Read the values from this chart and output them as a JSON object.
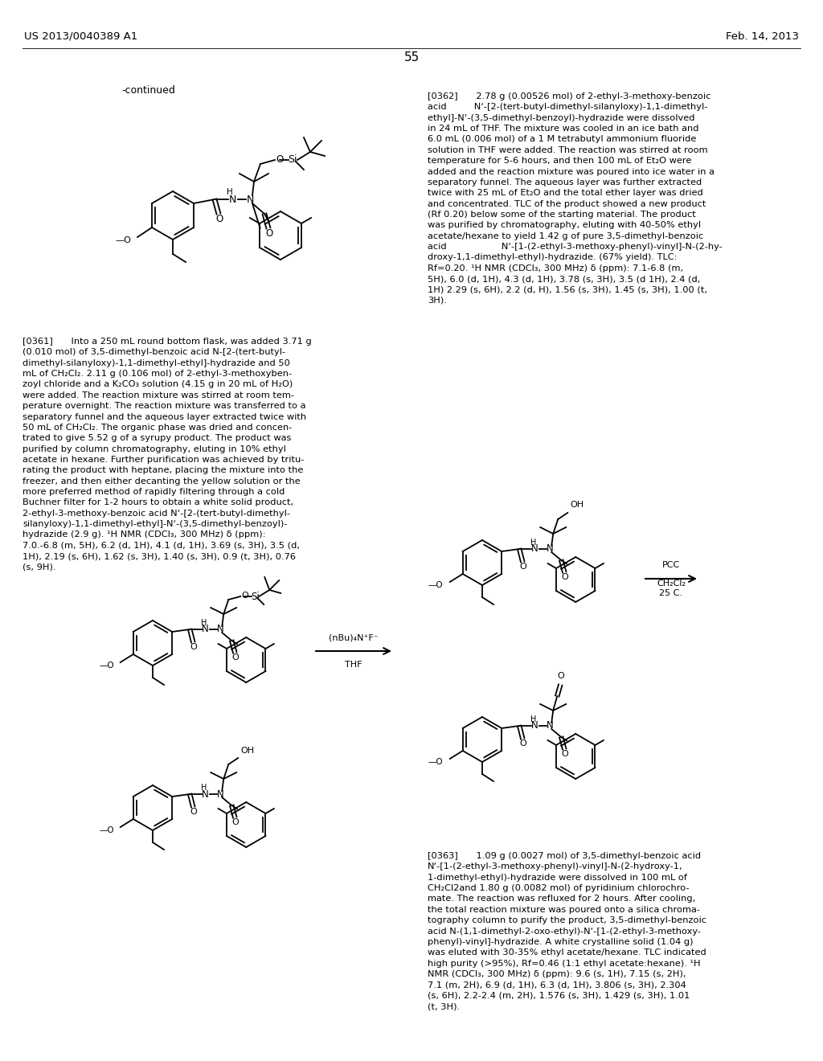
{
  "page_number": "55",
  "header_left": "US 2013/0040389 A1",
  "header_right": "Feb. 14, 2013",
  "background_color": "#ffffff",
  "text_color": "#000000",
  "continued_label": "-continued",
  "p0361": "[0361]  Into a 250 mL round bottom flask, was added 3.71 g\n(0.010 mol) of 3,5-dimethyl-benzoic acid N-[2-(tert-butyl-\ndimethyl-silanyloxy)-1,1-dimethyl-ethyl]-hydrazide and 50\nmL of CH₂Cl₂. 2.11 g (0.106 mol) of 2-ethyl-3-methoxyben-\nzoyl chloride and a K₂CO₃ solution (4.15 g in 20 mL of H₂O)\nwere added. The reaction mixture was stirred at room tem-\nperature overnight. The reaction mixture was transferred to a\nseparatory funnel and the aqueous layer extracted twice with\n50 mL of CH₂Cl₂. The organic phase was dried and concen-\ntrated to give 5.52 g of a syrupy product. The product was\npurified by column chromatography, eluting in 10% ethyl\nacetate in hexane. Further purification was achieved by tritu-\nrating the product with heptane, placing the mixture into the\nfreezer, and then either decanting the yellow solution or the\nmore preferred method of rapidly filtering through a cold\nBuchner filter for 1-2 hours to obtain a white solid product,\n2-ethyl-3-methoxy-benzoic acid N‘-[2-(tert-butyl-dimethyl-\nsilanyloxy)-1,1-dimethyl-ethyl]-N‘-(3,5-dimethyl-benzoyl)-\nhydrazide (2.9 g). ¹H NMR (CDCl₃, 300 MHz) δ (ppm):\n7.0.-6.8 (m, 5H), 6.2 (d, 1H), 4.1 (d, 1H), 3.69 (s, 3H), 3.5 (d,\n1H), 2.19 (s, 6H), 1.62 (s, 3H), 1.40 (s, 3H), 0.9 (t, 3H), 0.76\n(s, 9H).",
  "p0362": "[0362]  2.78 g (0.00526 mol) of 2-ethyl-3-methoxy-benzoic\nacid   N‘-[2-(tert-butyl-dimethyl-silanyloxy)-1,1-dimethyl-\nethyl]-N‘-(3,5-dimethyl-benzoyl)-hydrazide were dissolved\nin 24 mL of THF. The mixture was cooled in an ice bath and\n6.0 mL (0.006 mol) of a 1 M tetrabutyl ammonium fluoride\nsolution in THF were added. The reaction was stirred at room\ntemperature for 5-6 hours, and then 100 mL of Et₂O were\nadded and the reaction mixture was poured into ice water in a\nseparatory funnel. The aqueous layer was further extracted\ntwice with 25 mL of Et₂O and the total ether layer was dried\nand concentrated. TLC of the product showed a new product\n(Rf 0.20) below some of the starting material. The product\nwas purified by chromatography, eluting with 40-50% ethyl\nacetate/hexane to yield 1.42 g of pure 3,5-dimethyl-benzoic\nacid      N‘-[1-(2-ethyl-3-methoxy-phenyl)-vinyl]-N-(2-hy-\ndroxy-1,1-dimethyl-ethyl)-hydrazide. (67% yield). TLC:\nRf=0.20. ¹H NMR (CDCl₃, 300 MHz) δ (ppm): 7.1-6.8 (m,\n5H), 6.0 (d, 1H), 4.3 (d, 1H), 3.78 (s, 3H), 3.5 (d 1H), 2.4 (d,\n1H) 2.29 (s, 6H), 2.2 (d, H), 1.56 (s, 3H), 1.45 (s, 3H), 1.00 (t,\n3H).",
  "p0363": "[0363]  1.09 g (0.0027 mol) of 3,5-dimethyl-benzoic acid\nN‘-[1-(2-ethyl-3-methoxy-phenyl)-vinyl]-N-(2-hydroxy-1,\n1-dimethyl-ethyl)-hydrazide were dissolved in 100 mL of\nCH₂Cl2and 1.80 g (0.0082 mol) of pyridinium chlorochro-\nmate. The reaction was refluxed for 2 hours. After cooling,\nthe total reaction mixture was poured onto a silica chroma-\ntography column to purify the product, 3,5-dimethyl-benzoic\nacid N-(1,1-dimethyl-2-oxo-ethyl)-N‘-[1-(2-ethyl-3-methoxy-\nphenyl)-vinyl]-hydrazide. A white crystalline solid (1.04 g)\nwas eluted with 30-35% ethyl acetate/hexane. TLC indicated\nhigh purity (>95%), Rf=0.46 (1:1 ethyl acetate:hexane). ¹H\nNMR (CDCl₃, 300 MHz) δ (ppm): 9.6 (s, 1H), 7.15 (s, 2H),\n7.1 (m, 2H), 6.9 (d, 1H), 6.3 (d, 1H), 3.806 (s, 3H), 2.304\n(s, 6H), 2.2-2.4 (m, 2H), 1.576 (s, 3H), 1.429 (s, 3H), 1.01\n(t, 3H).",
  "arrow1_top": "(nBu)₄N⁺F⁻",
  "arrow1_bot": "THF",
  "arrow2_top": "PCC",
  "arrow2_mid": "CH₂Cl₂",
  "arrow2_bot": "25 C."
}
